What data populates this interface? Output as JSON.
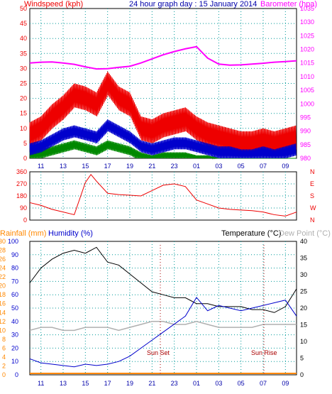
{
  "title": "24 hour graph day : 15 January 2014",
  "colors": {
    "windspeed": "#ee0000",
    "windavg": "#0000cc",
    "windgreen": "#008800",
    "barometer": "#ff00ff",
    "temperature": "#000000",
    "dewpoint": "#b0b0b0",
    "humidity": "#0000cc",
    "rainfall": "#ff8800",
    "grid": "#009999"
  },
  "x_ticks": [
    "11",
    "13",
    "15",
    "17",
    "19",
    "21",
    "23",
    "01",
    "03",
    "05",
    "07",
    "09"
  ],
  "bottom_extra_labels": [
    "Sun Set",
    "Sun Rise"
  ],
  "chart_data": [
    {
      "type": "line",
      "name": "wind-barometer-panel",
      "left_label": "Windspeed (kph)",
      "right_label": "Barometer (hpa)",
      "left_ticks": [
        "0",
        "5",
        "10",
        "15",
        "20",
        "25",
        "30",
        "35",
        "40",
        "45",
        "50"
      ],
      "right_ticks": [
        "980",
        "985",
        "990",
        "995",
        "1000",
        "1005",
        "1010",
        "1015",
        "1020",
        "1025",
        "1030",
        "1035"
      ],
      "ylim_left": [
        0,
        50
      ],
      "ylim_right": [
        980,
        1035
      ],
      "x_hours": [
        10,
        34
      ],
      "series": [
        {
          "name": "Barometer",
          "axis": "right",
          "x": [
            10,
            11,
            12,
            13,
            14,
            15,
            16,
            17,
            18,
            19,
            20,
            21,
            22,
            23,
            24,
            25,
            26,
            27,
            28,
            29,
            30,
            31,
            32,
            33,
            34
          ],
          "values": [
            1015.0,
            1015.3,
            1015.4,
            1015.0,
            1014.5,
            1013.6,
            1012.8,
            1012.9,
            1013.4,
            1013.8,
            1015.0,
            1016.5,
            1018.0,
            1019.2,
            1020.2,
            1021.0,
            1016.8,
            1014.6,
            1014.2,
            1014.3,
            1014.6,
            1014.9,
            1015.3,
            1015.5,
            1015.8
          ]
        },
        {
          "name": "Wind gust",
          "axis": "left",
          "x": [
            10,
            11,
            12,
            13,
            14,
            15,
            16,
            17,
            18,
            19,
            20,
            21,
            22,
            23,
            24,
            25,
            26,
            27,
            28,
            29,
            30,
            31,
            32,
            33,
            34
          ],
          "values": [
            12,
            14,
            18,
            21,
            25,
            24,
            22,
            29,
            24,
            22,
            14,
            13,
            15,
            16,
            17,
            14,
            12,
            11,
            10,
            9,
            9,
            10,
            9,
            10,
            11
          ]
        },
        {
          "name": "Wind average",
          "axis": "left",
          "x": [
            10,
            11,
            12,
            13,
            14,
            15,
            16,
            17,
            18,
            19,
            20,
            21,
            22,
            23,
            24,
            25,
            26,
            27,
            28,
            29,
            30,
            31,
            32,
            33,
            34
          ],
          "values": [
            5,
            6,
            8,
            10,
            11,
            10,
            9,
            13,
            11,
            9,
            6,
            5,
            6,
            7,
            7,
            6,
            5,
            4,
            4,
            3,
            3,
            4,
            3,
            4,
            5
          ]
        },
        {
          "name": "Wind green",
          "axis": "left",
          "x": [
            10,
            11,
            12,
            13,
            14,
            15,
            16,
            17,
            18,
            19,
            20,
            21,
            22,
            23,
            24,
            25,
            26,
            27,
            28,
            29,
            30,
            31,
            32,
            33,
            34
          ],
          "values": [
            2,
            3,
            4,
            5,
            6,
            5,
            4,
            6,
            5,
            4,
            2,
            1,
            2,
            2,
            2,
            1,
            1,
            0,
            0,
            0,
            0,
            0,
            0,
            0,
            0
          ]
        }
      ]
    },
    {
      "type": "line",
      "name": "wind-direction-panel",
      "left_ticks": [
        "0",
        "90",
        "180",
        "270",
        "360"
      ],
      "right_ticks": [
        "N",
        "W",
        "S",
        "E",
        "N"
      ],
      "ylim": [
        0,
        360
      ],
      "x_hours": [
        10,
        34
      ],
      "series": [
        {
          "name": "Direction",
          "x": [
            10,
            11,
            12,
            13,
            14,
            15,
            15.5,
            16,
            17,
            18,
            19,
            20,
            21,
            22,
            23,
            24,
            25,
            26,
            27,
            28,
            29,
            30,
            31,
            32,
            33,
            34
          ],
          "values": [
            130,
            110,
            80,
            60,
            40,
            280,
            340,
            290,
            200,
            190,
            185,
            180,
            220,
            260,
            270,
            250,
            150,
            120,
            90,
            80,
            75,
            70,
            60,
            40,
            30,
            60
          ]
        }
      ]
    },
    {
      "type": "line",
      "name": "temp-humidity-panel",
      "labels": [
        "Rainfall (mm)",
        "Humidity (%)",
        "Temperature (°C)",
        "Dew Point (°C)"
      ],
      "rain_ticks": [
        "0",
        "2",
        "4",
        "6",
        "8",
        "10",
        "12",
        "14",
        "16",
        "18",
        "20",
        "22",
        "24",
        "26",
        "28",
        "30"
      ],
      "humidity_ticks": [
        "0",
        "10",
        "20",
        "30",
        "40",
        "50",
        "60",
        "70",
        "80",
        "90",
        "100"
      ],
      "temp_ticks": [
        "0",
        "5",
        "10",
        "15",
        "20",
        "25",
        "30",
        "35",
        "40"
      ],
      "ylim_temp": [
        0,
        45
      ],
      "x_hours": [
        10,
        34
      ],
      "series": [
        {
          "name": "Temperature",
          "x": [
            10,
            11,
            12,
            13,
            14,
            15,
            16,
            17,
            18,
            19,
            20,
            21,
            22,
            23,
            24,
            25,
            26,
            27,
            28,
            29,
            30,
            31,
            32,
            33,
            34
          ],
          "values": [
            31,
            36,
            39,
            41,
            42,
            41,
            43,
            38,
            37,
            34,
            31,
            28,
            27,
            26,
            26,
            24,
            24,
            23,
            23,
            23,
            22,
            22,
            21,
            23,
            29
          ]
        },
        {
          "name": "Dew Point",
          "x": [
            10,
            11,
            12,
            13,
            14,
            15,
            16,
            17,
            18,
            19,
            20,
            21,
            22,
            23,
            24,
            25,
            26,
            27,
            28,
            29,
            30,
            31,
            32,
            33,
            34
          ],
          "values": [
            15,
            16,
            16,
            15,
            15,
            16,
            16,
            16,
            15,
            16,
            17,
            18,
            18,
            17,
            17,
            18,
            17,
            16,
            16,
            16,
            16,
            17,
            17,
            17,
            17
          ]
        },
        {
          "name": "Humidity",
          "x": [
            10,
            11,
            12,
            13,
            14,
            15,
            16,
            17,
            18,
            19,
            20,
            21,
            22,
            23,
            24,
            25,
            26,
            27,
            28,
            29,
            30,
            31,
            32,
            33,
            34
          ],
          "values": [
            12,
            9,
            8,
            7,
            6,
            8,
            7,
            8,
            10,
            14,
            20,
            26,
            32,
            38,
            44,
            58,
            48,
            52,
            50,
            48,
            50,
            52,
            54,
            56,
            44
          ]
        },
        {
          "name": "Rainfall",
          "x": [
            10,
            34
          ],
          "values": [
            0,
            0
          ]
        }
      ]
    }
  ]
}
